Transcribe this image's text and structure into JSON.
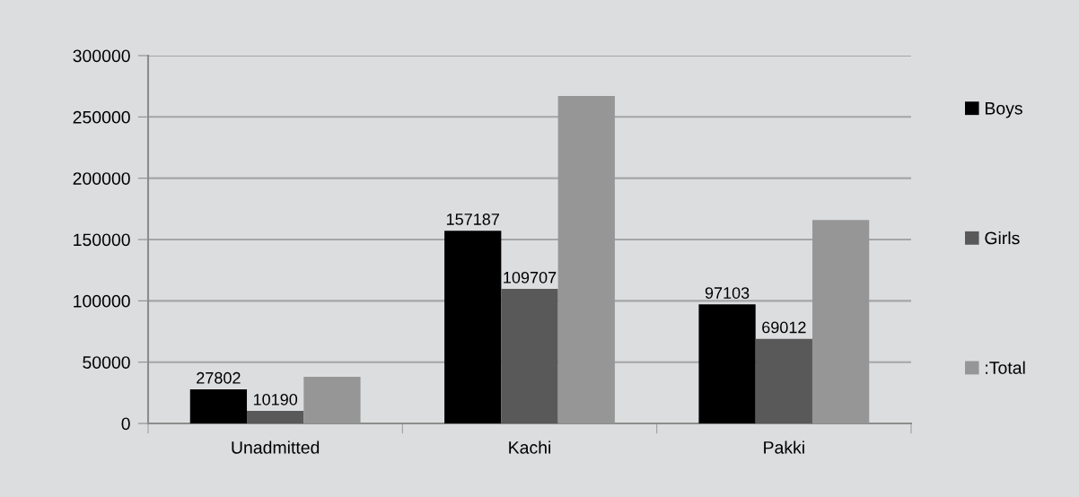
{
  "chart_data": {
    "type": "bar",
    "categories": [
      "Unadmitted",
      "Kachi",
      "Pakki"
    ],
    "series": [
      {
        "name": "Boys",
        "color": "#000000",
        "values": [
          27802,
          157187,
          97103
        ],
        "value_labels": [
          "27802",
          "157187",
          "97103"
        ]
      },
      {
        "name": "Girls",
        "color": "#595959",
        "values": [
          10190,
          109707,
          69012
        ],
        "value_labels": [
          "10190",
          "109707",
          "69012"
        ]
      },
      {
        "name": ":Total",
        "color": "#969696",
        "values": [
          38000,
          267000,
          166000
        ]
      }
    ],
    "ylim": [
      0,
      300000
    ],
    "yticks": [
      0,
      50000,
      100000,
      150000,
      200000,
      250000,
      300000
    ],
    "grid": "y",
    "legend": "right"
  }
}
